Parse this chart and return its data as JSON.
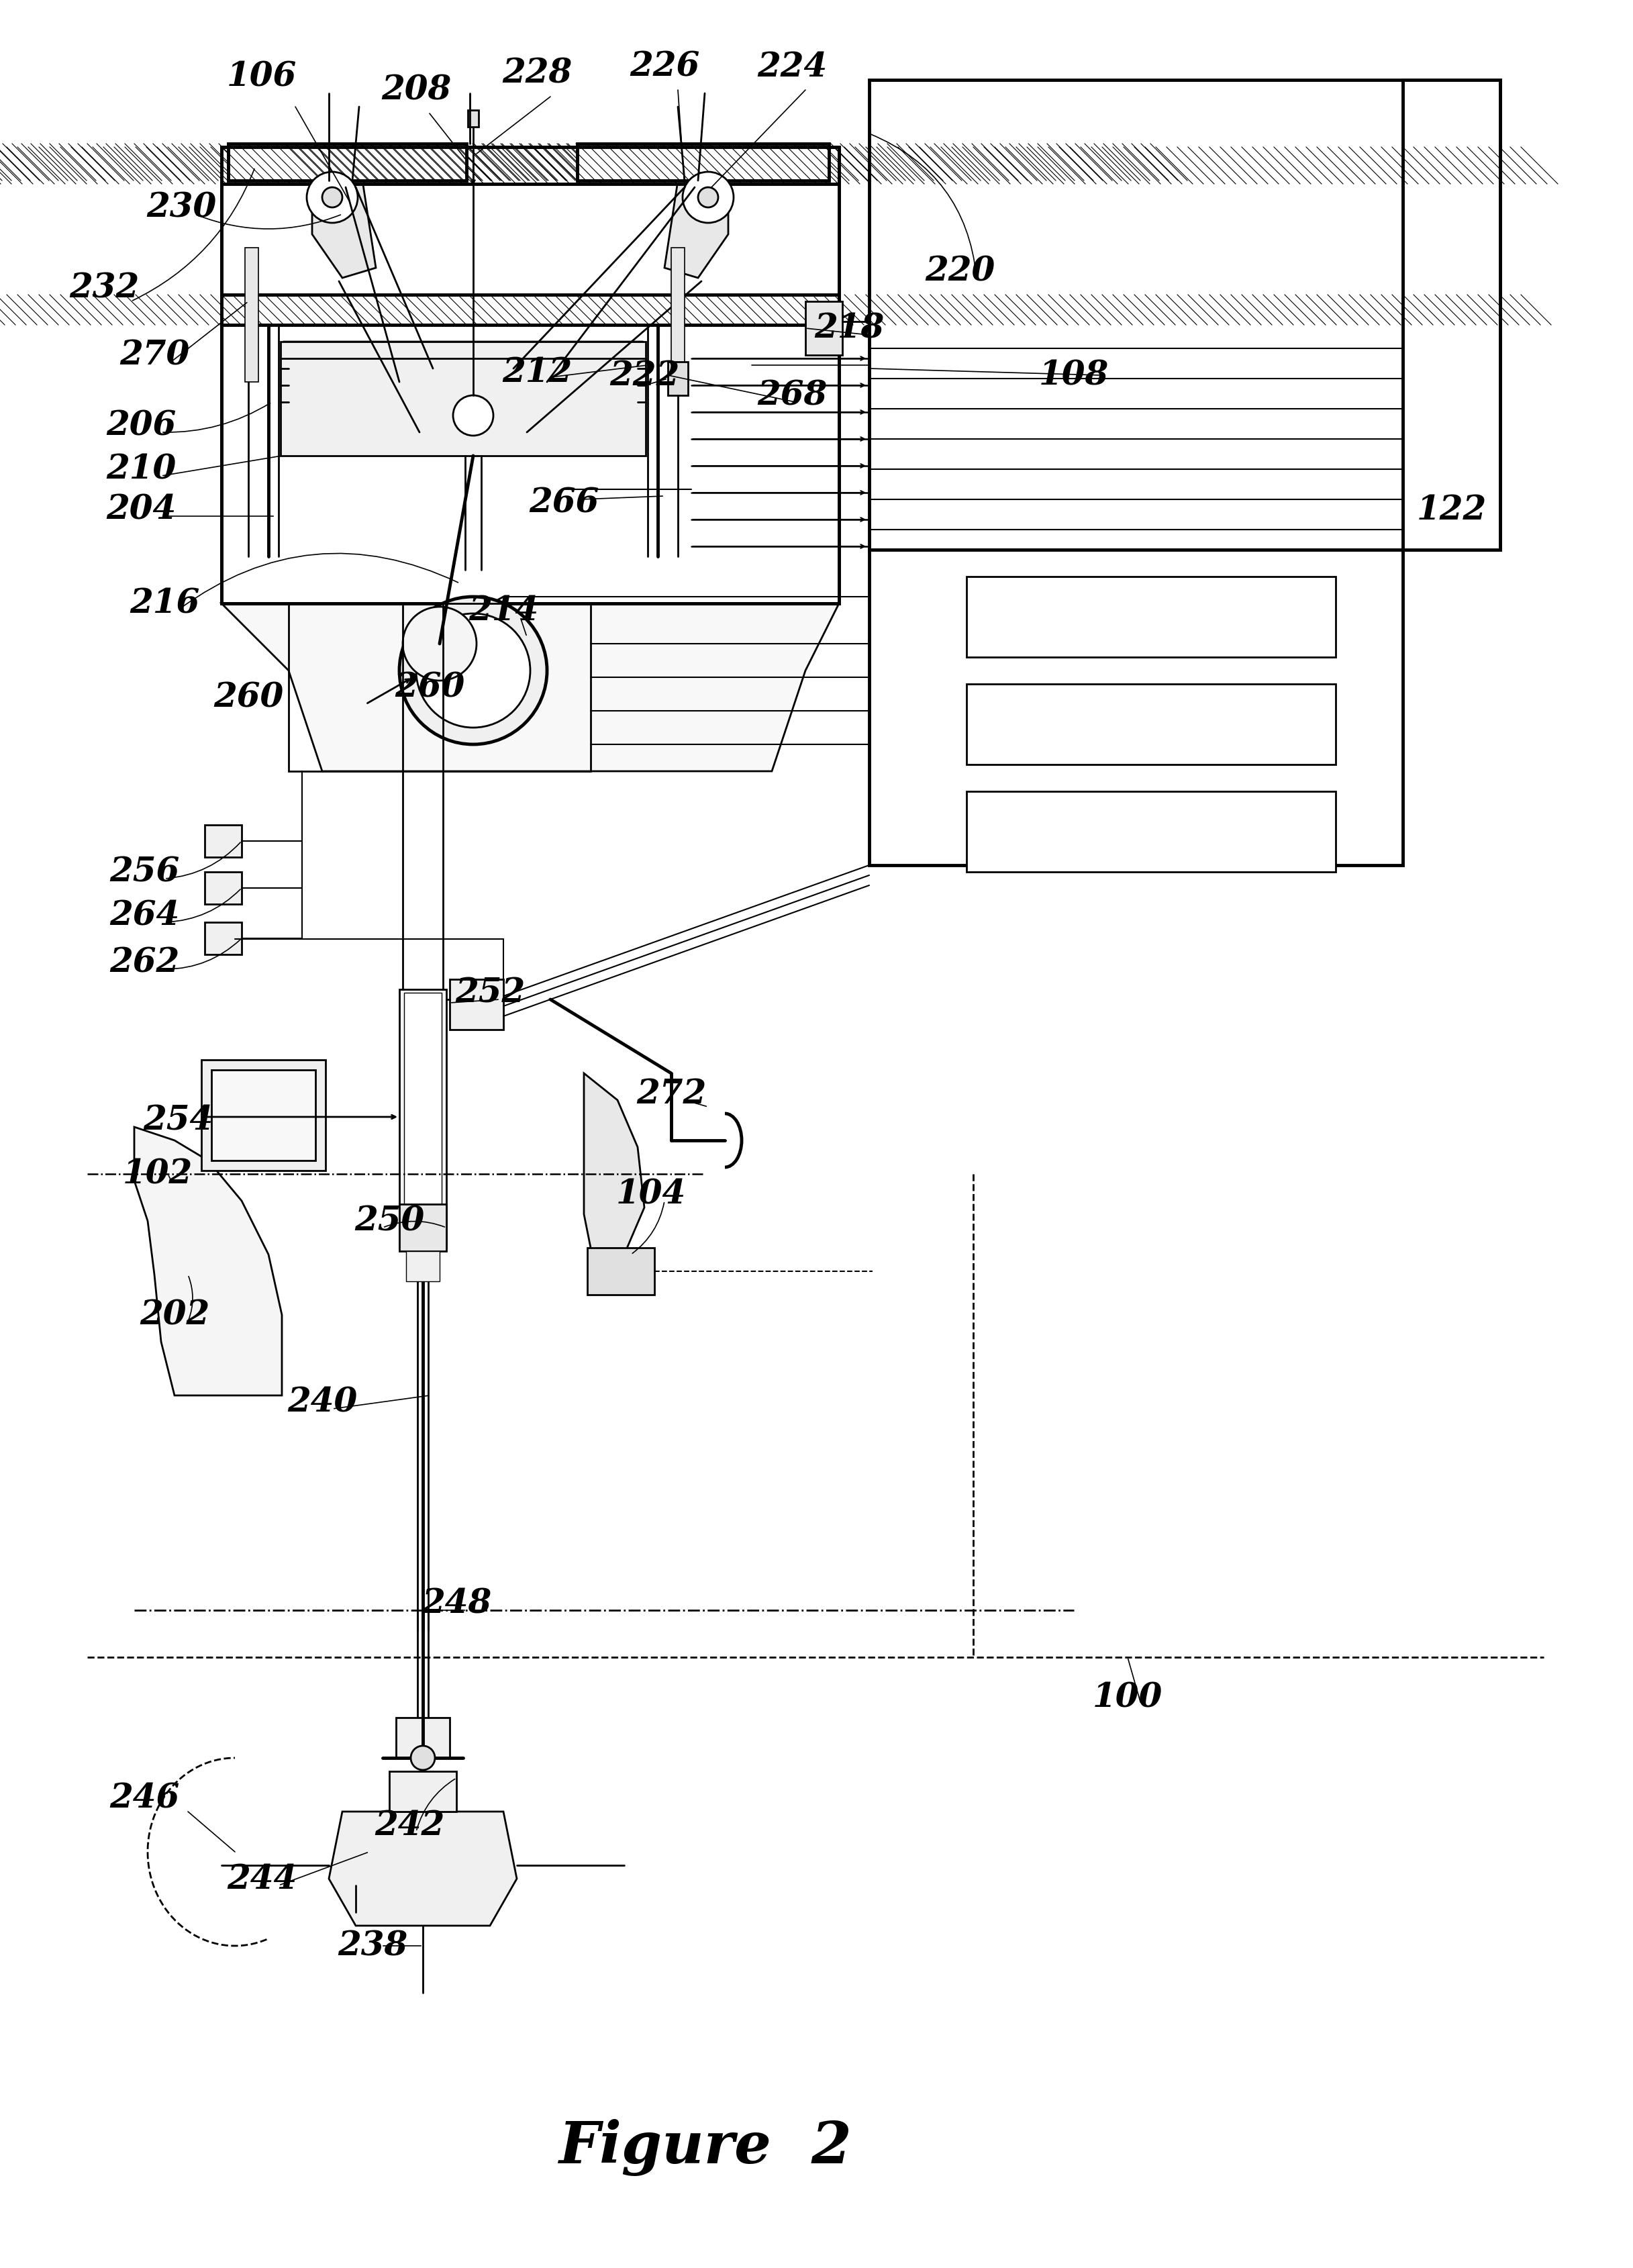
{
  "title": "Figure  2",
  "bg": "#ffffff",
  "lw_main": 2.0,
  "lw_thick": 3.5,
  "lw_thin": 1.2,
  "label_fs": 36,
  "title_fs": 62,
  "labels": [
    [
      "106",
      390,
      115
    ],
    [
      "208",
      620,
      135
    ],
    [
      "228",
      800,
      110
    ],
    [
      "226",
      990,
      100
    ],
    [
      "224",
      1180,
      100
    ],
    [
      "230",
      270,
      310
    ],
    [
      "232",
      155,
      430
    ],
    [
      "270",
      230,
      530
    ],
    [
      "206",
      210,
      635
    ],
    [
      "210",
      210,
      700
    ],
    [
      "204",
      210,
      760
    ],
    [
      "212",
      800,
      555
    ],
    [
      "222",
      960,
      560
    ],
    [
      "268",
      1180,
      590
    ],
    [
      "108",
      1600,
      560
    ],
    [
      "218",
      1265,
      490
    ],
    [
      "220",
      1430,
      405
    ],
    [
      "266",
      840,
      750
    ],
    [
      "216",
      245,
      900
    ],
    [
      "214",
      750,
      910
    ],
    [
      "260",
      370,
      1040
    ],
    [
      "260",
      640,
      1025
    ],
    [
      "256",
      215,
      1300
    ],
    [
      "264",
      215,
      1365
    ],
    [
      "262",
      215,
      1435
    ],
    [
      "252",
      730,
      1480
    ],
    [
      "254",
      265,
      1670
    ],
    [
      "102",
      235,
      1750
    ],
    [
      "250",
      580,
      1820
    ],
    [
      "202",
      260,
      1960
    ],
    [
      "240",
      480,
      2090
    ],
    [
      "248",
      680,
      2390
    ],
    [
      "272",
      1000,
      1630
    ],
    [
      "104",
      970,
      1780
    ],
    [
      "100",
      1680,
      2530
    ],
    [
      "242",
      610,
      2720
    ],
    [
      "244",
      390,
      2800
    ],
    [
      "246",
      215,
      2680
    ],
    [
      "238",
      555,
      2900
    ]
  ]
}
